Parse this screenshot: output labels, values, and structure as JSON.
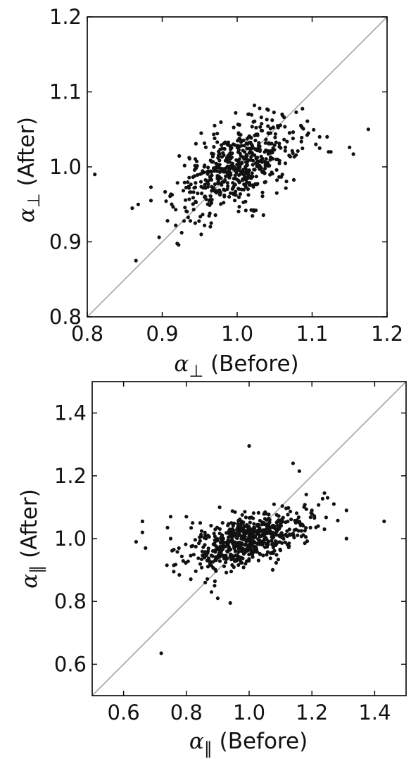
{
  "chart_data": [
    {
      "type": "scatter",
      "xlabel": {
        "symbol": "α",
        "subscript": "⊥",
        "text": " (Before)"
      },
      "ylabel": {
        "symbol": "α",
        "subscript": "⊥",
        "text": " (After)"
      },
      "xlim": [
        0.8,
        1.2
      ],
      "ylim": [
        0.8,
        1.2
      ],
      "xticks": [
        "0.8",
        "0.9",
        "1.0",
        "1.1",
        "1.2"
      ],
      "yticks": [
        "0.8",
        "0.9",
        "1.0",
        "1.1",
        "1.2"
      ],
      "xtick_values": [
        0.8,
        0.9,
        1.0,
        1.1,
        1.2
      ],
      "ytick_values": [
        0.8,
        0.9,
        1.0,
        1.1,
        1.2
      ],
      "reference_line": "y = x",
      "reference_line_color": "#a6a6a6",
      "point_color": "#111111",
      "grid": false,
      "outliers": [
        [
          0.81,
          0.99
        ],
        [
          0.865,
          0.875
        ],
        [
          0.86,
          0.945
        ],
        [
          0.868,
          0.95
        ],
        [
          0.885,
          0.973
        ],
        [
          0.885,
          0.955
        ],
        [
          1.175,
          1.05
        ],
        [
          1.155,
          1.017
        ],
        [
          1.15,
          1.026
        ],
        [
          1.125,
          1.02
        ],
        [
          1.122,
          1.02
        ],
        [
          1.12,
          1.04
        ],
        [
          1.11,
          1.04
        ],
        [
          1.105,
          1.03
        ],
        [
          1.11,
          1.025
        ],
        [
          1.095,
          1.045
        ],
        [
          1.085,
          1.055
        ],
        [
          0.952,
          0.91
        ],
        [
          0.944,
          0.925
        ],
        [
          0.918,
          0.922
        ],
        [
          1.023,
          1.082
        ],
        [
          1.03,
          1.078
        ],
        [
          1.04,
          1.077
        ],
        [
          1.06,
          1.07
        ],
        [
          0.998,
          1.072
        ],
        [
          0.97,
          1.055
        ],
        [
          0.952,
          1.045
        ]
      ],
      "cluster": {
        "center": [
          1.0,
          1.0
        ],
        "sd": [
          0.04,
          0.03
        ],
        "correlation": 0.55,
        "count": 560
      }
    },
    {
      "type": "scatter",
      "xlabel": {
        "symbol": "α",
        "subscript": "∥",
        "text": " (Before)"
      },
      "ylabel": {
        "symbol": "α",
        "subscript": "∥",
        "text": " (After)"
      },
      "xlim": [
        0.5,
        1.5
      ],
      "ylim": [
        0.5,
        1.5
      ],
      "xticks": [
        "0.6",
        "0.8",
        "1.0",
        "1.2",
        "1.4"
      ],
      "yticks": [
        "0.6",
        "0.8",
        "1.0",
        "1.2",
        "1.4"
      ],
      "xtick_values": [
        0.6,
        0.8,
        1.0,
        1.2,
        1.4
      ],
      "ytick_values": [
        0.6,
        0.8,
        1.0,
        1.2,
        1.4
      ],
      "reference_line": "y = x",
      "reference_line_color": "#a6a6a6",
      "point_color": "#111111",
      "grid": false,
      "outliers": [
        [
          0.72,
          0.635
        ],
        [
          1.0,
          1.295
        ],
        [
          1.14,
          1.24
        ],
        [
          1.16,
          1.215
        ],
        [
          1.43,
          1.055
        ],
        [
          1.31,
          1.09
        ],
        [
          1.31,
          1.0
        ],
        [
          1.24,
          1.145
        ],
        [
          1.25,
          1.13
        ],
        [
          1.27,
          1.11
        ],
        [
          0.64,
          0.99
        ],
        [
          0.66,
          1.055
        ],
        [
          0.66,
          1.02
        ],
        [
          0.67,
          0.97
        ],
        [
          0.74,
          1.035
        ],
        [
          0.75,
          1.07
        ],
        [
          0.75,
          1.0
        ],
        [
          0.76,
          0.965
        ],
        [
          0.76,
          0.915
        ],
        [
          0.8,
          1.07
        ],
        [
          0.82,
          1.05
        ],
        [
          0.84,
          0.985
        ],
        [
          0.86,
          0.86
        ],
        [
          0.88,
          0.83
        ],
        [
          0.89,
          0.85
        ],
        [
          0.9,
          0.81
        ],
        [
          0.94,
          0.795
        ],
        [
          1.2,
          1.09
        ],
        [
          1.22,
          1.04
        ],
        [
          1.24,
          1.03
        ]
      ],
      "cluster": {
        "center": [
          1.0,
          1.0
        ],
        "sd": [
          0.09,
          0.045
        ],
        "correlation": 0.5,
        "count": 600
      }
    }
  ]
}
